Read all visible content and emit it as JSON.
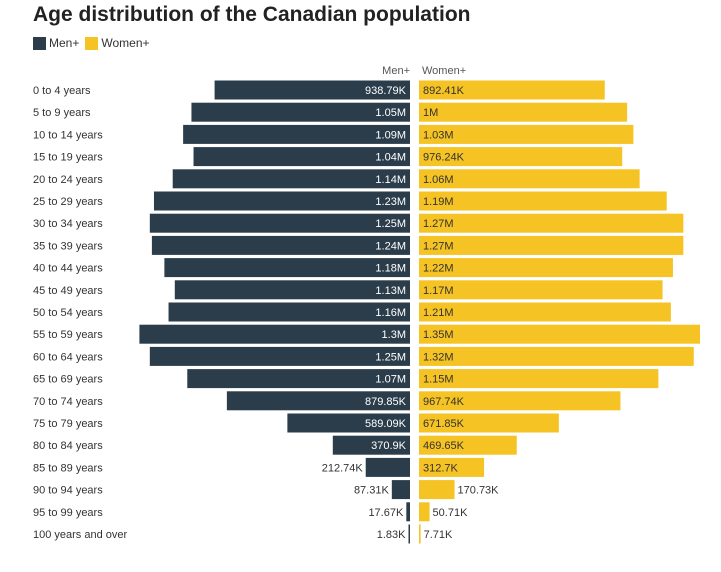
{
  "chart_data": {
    "type": "bar",
    "orientation": "horizontal-population-pyramid",
    "title": "Age distribution of the Canadian population",
    "legend_position": "top-left",
    "grid": false,
    "colors": {
      "men": "#2b3d4b",
      "women": "#f5c323"
    },
    "categories": [
      "0 to 4 years",
      "5 to 9 years",
      "10 to 14 years",
      "15 to 19 years",
      "20 to 24 years",
      "25 to 29 years",
      "30 to 34 years",
      "35 to 39 years",
      "40 to 44 years",
      "45 to 49 years",
      "50 to 54 years",
      "55 to 59 years",
      "60 to 64 years",
      "65 to 69 years",
      "70 to 74 years",
      "75 to 79 years",
      "80 to 84 years",
      "85 to 89 years",
      "90 to 94 years",
      "95 to 99 years",
      "100 years and over"
    ],
    "series": [
      {
        "name": "Men+",
        "values": [
          938790,
          1050000,
          1090000,
          1040000,
          1140000,
          1230000,
          1250000,
          1240000,
          1180000,
          1130000,
          1160000,
          1300000,
          1250000,
          1070000,
          879850,
          589090,
          370900,
          212740,
          87310,
          17670,
          1830
        ],
        "labels": [
          "938.79K",
          "1.05M",
          "1.09M",
          "1.04M",
          "1.14M",
          "1.23M",
          "1.25M",
          "1.24M",
          "1.18M",
          "1.13M",
          "1.16M",
          "1.3M",
          "1.25M",
          "1.07M",
          "879.85K",
          "589.09K",
          "370.9K",
          "212.74K",
          "87.31K",
          "17.67K",
          "1.83K"
        ]
      },
      {
        "name": "Women+",
        "values": [
          892410,
          1000000,
          1030000,
          976240,
          1060000,
          1190000,
          1270000,
          1270000,
          1220000,
          1170000,
          1210000,
          1350000,
          1320000,
          1150000,
          967740,
          671850,
          469650,
          312700,
          170730,
          50710,
          7710
        ],
        "labels": [
          "892.41K",
          "1M",
          "1.03M",
          "976.24K",
          "1.06M",
          "1.19M",
          "1.27M",
          "1.27M",
          "1.22M",
          "1.17M",
          "1.21M",
          "1.35M",
          "1.32M",
          "1.15M",
          "967.74K",
          "671.85K",
          "469.65K",
          "312.7K",
          "170.73K",
          "50.71K",
          "7.71K"
        ]
      }
    ]
  }
}
